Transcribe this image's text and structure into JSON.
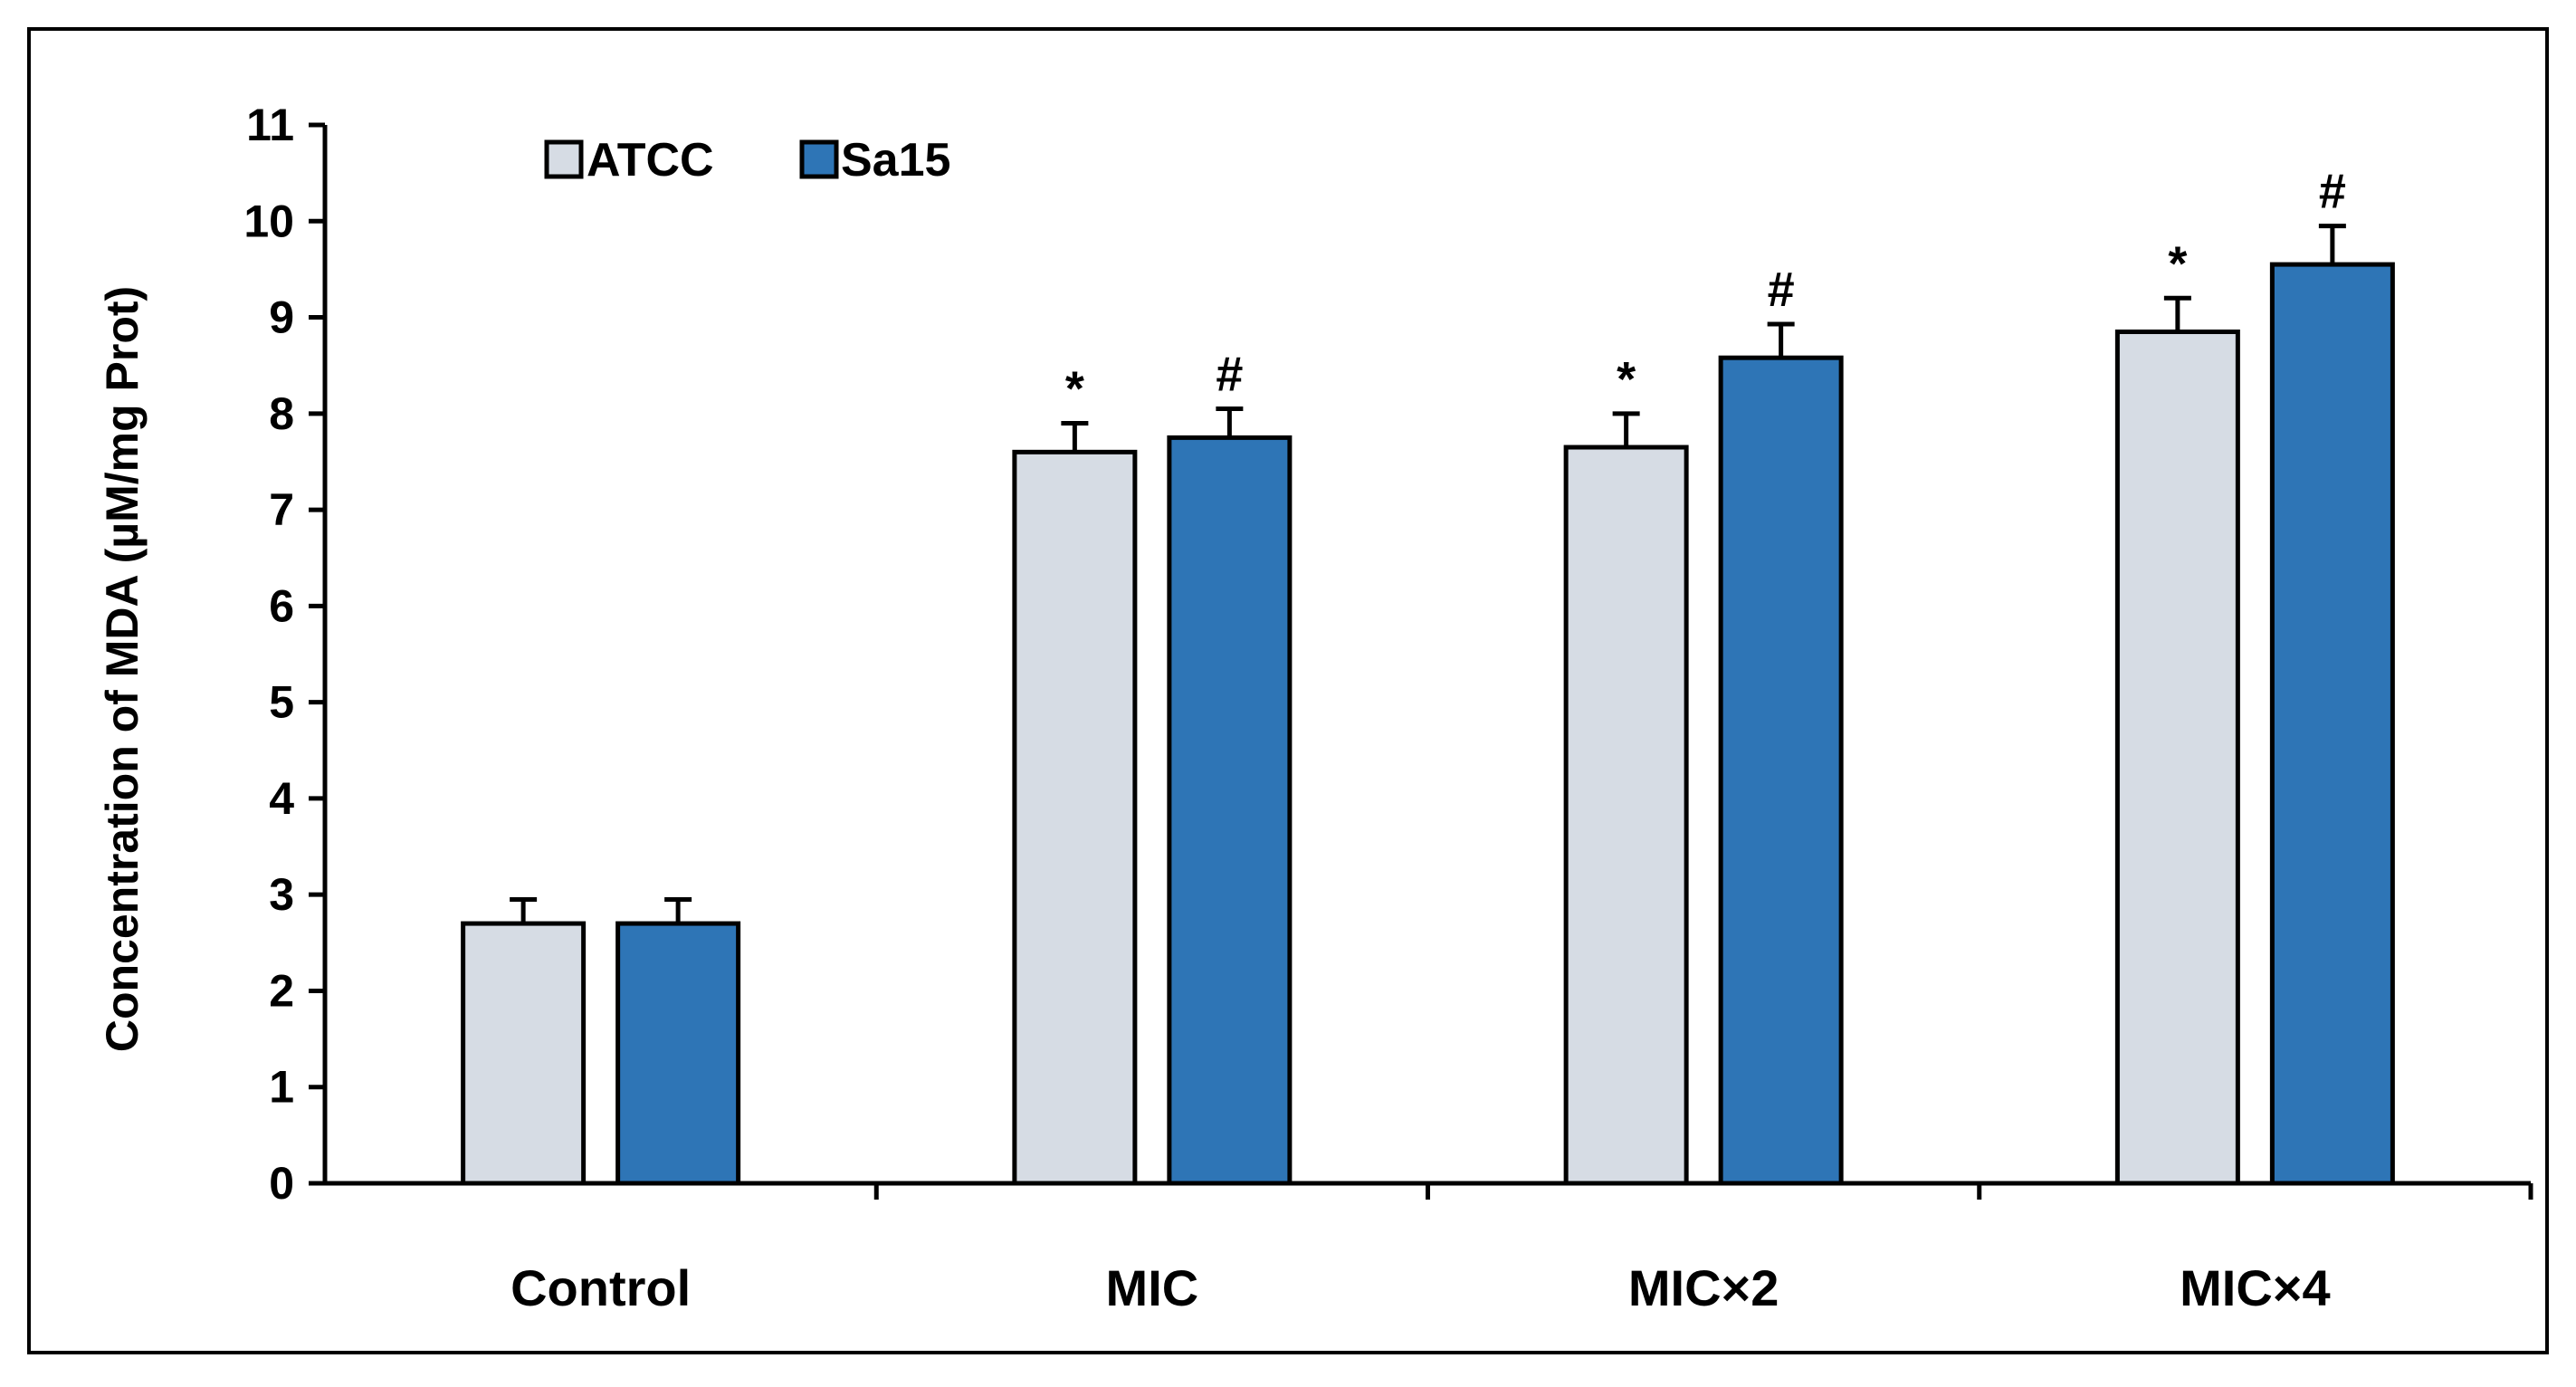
{
  "chart_data": {
    "type": "bar",
    "title": "",
    "xlabel": "",
    "ylabel": "Concentration of MDA (µM/mg Prot)",
    "ylim": [
      0,
      11
    ],
    "yticks": [
      0,
      1,
      2,
      3,
      4,
      5,
      6,
      7,
      8,
      9,
      10,
      11
    ],
    "categories": [
      "Control",
      "MIC",
      "MIC×2",
      "MIC×4"
    ],
    "series": [
      {
        "name": "ATCC",
        "color": "#d6dce4",
        "values": [
          2.7,
          7.6,
          7.65,
          8.85
        ],
        "errors": [
          0.25,
          0.3,
          0.35,
          0.35
        ],
        "markers": [
          "",
          "*",
          "*",
          "*"
        ]
      },
      {
        "name": "Sa15",
        "color": "#2e75b6",
        "values": [
          2.7,
          7.75,
          8.58,
          9.55
        ],
        "errors": [
          0.25,
          0.3,
          0.35,
          0.4
        ],
        "markers": [
          "",
          "#",
          "#",
          "#"
        ]
      }
    ],
    "legend_position": "top-left",
    "grid": false
  }
}
